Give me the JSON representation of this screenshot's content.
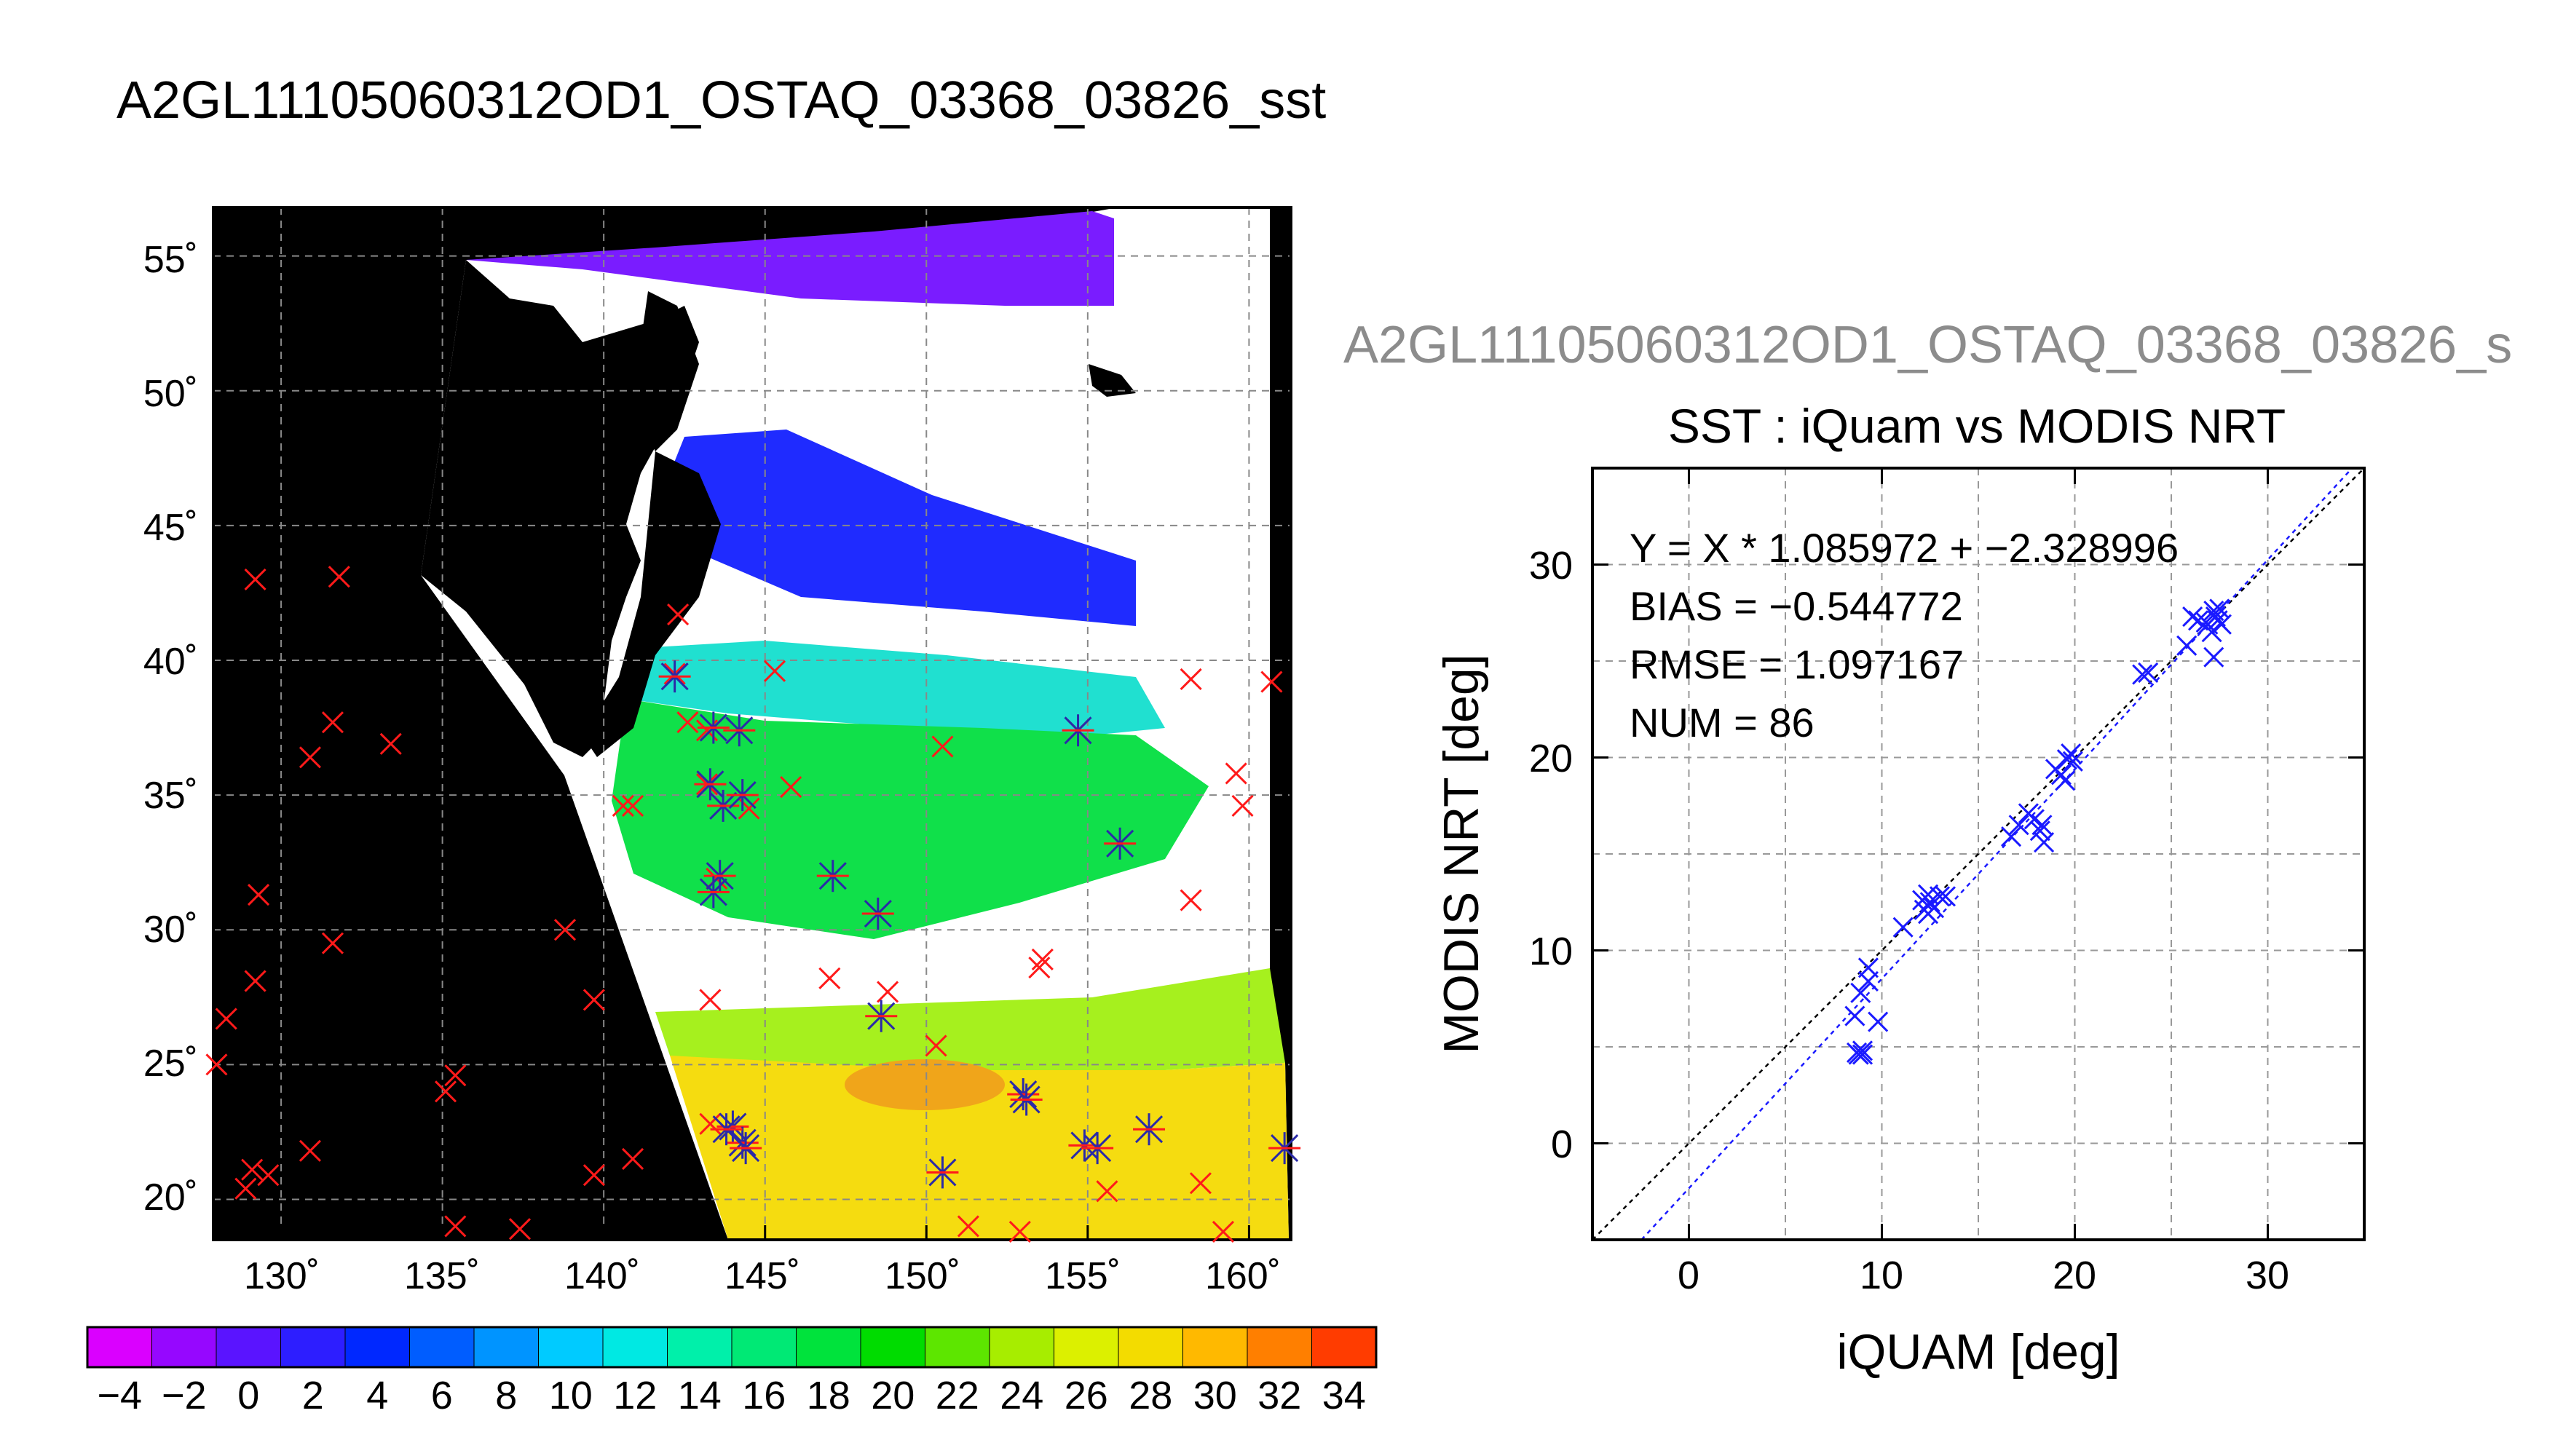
{
  "page_title": "A2GL11105060312OD1_OSTAQ_03368_03826_sst",
  "chart_data": [
    {
      "type": "heatmap",
      "title": "A2GL11105060312OD1_OSTAQ_03368_03826_sst",
      "x_tick_labels": [
        "130˚",
        "135˚",
        "140˚",
        "145˚",
        "150˚",
        "155˚",
        "160˚"
      ],
      "x_ticks": [
        130,
        135,
        140,
        145,
        150,
        155,
        160
      ],
      "y_tick_labels": [
        "55˚",
        "50˚",
        "45˚",
        "40˚",
        "35˚",
        "30˚",
        "25˚",
        "20˚"
      ],
      "y_ticks": [
        55,
        50,
        45,
        40,
        35,
        30,
        25,
        20
      ],
      "xlim": [
        127.9,
        161.3
      ],
      "ylim": [
        18.5,
        56.8
      ],
      "grid": true,
      "colorbar": {
        "min": -5,
        "max": 35,
        "step": 2,
        "tick_labels": [
          "−4",
          "−2",
          "0",
          "2",
          "4",
          "6",
          "8",
          "10",
          "12",
          "14",
          "16",
          "18",
          "20",
          "22",
          "24",
          "26",
          "28",
          "30",
          "32",
          "34"
        ],
        "tick_values": [
          -4,
          -2,
          0,
          2,
          4,
          6,
          8,
          10,
          12,
          14,
          16,
          18,
          20,
          22,
          24,
          26,
          28,
          30,
          32,
          34
        ]
      },
      "markers_red": [
        [
          129.2,
          43
        ],
        [
          131.8,
          43.1
        ],
        [
          130.9,
          36.4
        ],
        [
          131.6,
          37.7
        ],
        [
          133.4,
          36.9
        ],
        [
          129.3,
          31.3
        ],
        [
          129.2,
          28.1
        ],
        [
          131.6,
          29.5
        ],
        [
          128.3,
          26.7
        ],
        [
          128,
          25
        ],
        [
          129.1,
          21.1
        ],
        [
          128.9,
          20.4
        ],
        [
          129.6,
          20.9
        ],
        [
          130.9,
          21.8
        ],
        [
          135.1,
          24
        ],
        [
          135.4,
          24.6
        ],
        [
          135.4,
          19
        ],
        [
          137.4,
          18.9
        ],
        [
          138.8,
          30
        ],
        [
          139.7,
          27.4
        ],
        [
          139.7,
          20.9
        ],
        [
          140.9,
          21.5
        ],
        [
          140.6,
          34.6
        ],
        [
          140.9,
          34.6
        ],
        [
          142.3,
          41.7
        ],
        [
          142.2,
          39.5
        ],
        [
          142.6,
          37.7
        ],
        [
          143.2,
          35.4
        ],
        [
          144.5,
          34.5
        ],
        [
          145.3,
          39.6
        ],
        [
          145.8,
          35.3
        ],
        [
          143.3,
          27.4
        ],
        [
          147,
          28.2
        ],
        [
          148.8,
          27.7
        ],
        [
          150.3,
          25.7
        ],
        [
          150.5,
          36.8
        ],
        [
          153.6,
          28.9
        ],
        [
          153.5,
          28.6
        ],
        [
          154.7,
          37.4
        ],
        [
          158.2,
          39.3
        ],
        [
          159.6,
          35.8
        ],
        [
          158.2,
          31.1
        ],
        [
          159.8,
          34.6
        ],
        [
          160.7,
          39.2
        ],
        [
          155.6,
          20.3
        ],
        [
          158.5,
          20.6
        ],
        [
          151.3,
          19
        ],
        [
          152.9,
          18.8
        ],
        [
          159.2,
          18.8
        ],
        [
          143.5,
          31.9
        ],
        [
          143.3,
          22.8
        ],
        [
          143.2,
          37.4
        ]
      ],
      "markers_blue": [
        [
          142.2,
          39.4
        ],
        [
          143.4,
          37.5
        ],
        [
          144.2,
          37.4
        ],
        [
          143.7,
          34.6
        ],
        [
          144.3,
          35
        ],
        [
          143.6,
          32
        ],
        [
          143.4,
          31.4
        ],
        [
          147.1,
          32
        ],
        [
          148.5,
          30.6
        ],
        [
          148.6,
          26.8
        ],
        [
          153,
          23.9
        ],
        [
          153.1,
          23.7
        ],
        [
          156,
          33.2
        ],
        [
          154.7,
          37.4
        ],
        [
          150.5,
          21
        ],
        [
          144,
          22.7
        ],
        [
          144.3,
          22.1
        ],
        [
          144.4,
          21.9
        ],
        [
          143.8,
          22.6
        ],
        [
          154.9,
          22
        ],
        [
          155.3,
          21.9
        ],
        [
          156.9,
          22.6
        ],
        [
          161.1,
          21.9
        ],
        [
          143.3,
          35.4
        ]
      ]
    },
    {
      "type": "scatter",
      "supertitle": "A2GL11105060312OD1_OSTAQ_03368_03826_s",
      "title": "SST : iQuam vs MODIS NRT",
      "xlabel": "iQUAM [deg]",
      "ylabel": "MODIS NRT [deg]",
      "xlim": [
        -5,
        35
      ],
      "ylim": [
        -5,
        35
      ],
      "x_ticks": [
        0,
        10,
        20,
        30
      ],
      "y_ticks": [
        0,
        10,
        20,
        30
      ],
      "x_tick_labels": [
        "0",
        "10",
        "20",
        "30"
      ],
      "y_tick_labels": [
        "0",
        "10",
        "20",
        "30"
      ],
      "grid": true,
      "annotations": [
        "Y = X * 1.085972 + −2.328996",
        "BIAS = −0.544772",
        "RMSE = 1.097167",
        "NUM = 86"
      ],
      "fit": {
        "slope": 1.085972,
        "intercept": -2.328996
      },
      "points": [
        [
          8.7,
          4.7
        ],
        [
          9,
          4.6
        ],
        [
          8.8,
          4.6
        ],
        [
          9,
          4.8
        ],
        [
          8.6,
          6.6
        ],
        [
          9.8,
          6.3
        ],
        [
          8.9,
          7.8
        ],
        [
          9.3,
          8.4
        ],
        [
          9.3,
          9.1
        ],
        [
          11.1,
          11.2
        ],
        [
          12.2,
          12.1
        ],
        [
          12.5,
          12.5
        ],
        [
          12.7,
          12.2
        ],
        [
          12.4,
          12.9
        ],
        [
          13,
          12.8
        ],
        [
          12.1,
          12.6
        ],
        [
          13.3,
          12.8
        ],
        [
          12.4,
          11.9
        ],
        [
          16.7,
          15.9
        ],
        [
          17.1,
          16.5
        ],
        [
          17.6,
          17.1
        ],
        [
          17.9,
          16.8
        ],
        [
          18.3,
          16.5
        ],
        [
          18.2,
          16.2
        ],
        [
          18.4,
          15.6
        ],
        [
          19,
          19.4
        ],
        [
          19.6,
          19.9
        ],
        [
          19.9,
          19.8
        ],
        [
          19.8,
          20.2
        ],
        [
          19.5,
          18.8
        ],
        [
          19.3,
          19.1
        ],
        [
          23.8,
          24.4
        ],
        [
          23.5,
          24.3
        ],
        [
          25.8,
          25.8
        ],
        [
          26.1,
          27.3
        ],
        [
          26.4,
          27.1
        ],
        [
          26.8,
          27
        ],
        [
          27.1,
          26.5
        ],
        [
          27.4,
          27.1
        ],
        [
          27.6,
          26.9
        ],
        [
          27.2,
          27.6
        ],
        [
          27.3,
          27.3
        ],
        [
          27.5,
          27.7
        ],
        [
          26.9,
          26.9
        ],
        [
          27.2,
          25.2
        ]
      ]
    }
  ]
}
